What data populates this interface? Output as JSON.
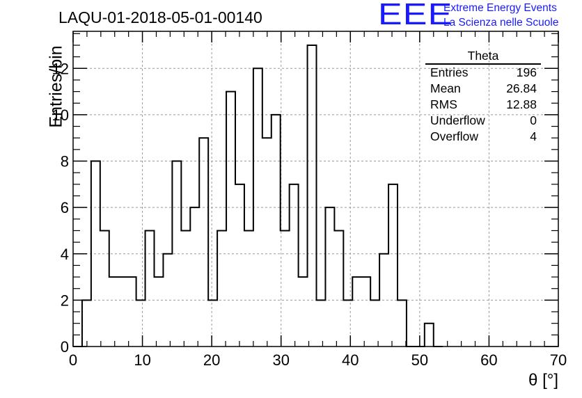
{
  "title": "LAQU-01-2018-05-01-00140",
  "logo": {
    "mark": "EEE",
    "line1": "Extreme Energy Events",
    "line2": "La Scienza nelle Scuole",
    "color": "#1a1aff"
  },
  "stats_box": {
    "title": "Theta",
    "rows": [
      {
        "label": "Entries",
        "value": "196"
      },
      {
        "label": "Mean",
        "value": "26.84"
      },
      {
        "label": "RMS",
        "value": "12.88"
      },
      {
        "label": "Underflow",
        "value": "0"
      },
      {
        "label": "Overflow",
        "value": "4"
      }
    ]
  },
  "chart_data": {
    "type": "bar",
    "subtype": "histogram",
    "title": "LAQU-01-2018-05-01-00140",
    "xlabel": "θ [°]",
    "ylabel": "Entries/bin",
    "xlim": [
      0,
      70
    ],
    "ylim": [
      0,
      13.6
    ],
    "bin_width": 1.3,
    "bin_edges_start": 0,
    "values": [
      0,
      2,
      8,
      5,
      3,
      3,
      3,
      2,
      5,
      3,
      4,
      8,
      5,
      6,
      9,
      2,
      5,
      11,
      7,
      5,
      12,
      9,
      10,
      5,
      7,
      3,
      13,
      2,
      6,
      5,
      2,
      3,
      3,
      2,
      4,
      7,
      2,
      0,
      0,
      1,
      0
    ],
    "x_ticks": [
      "0",
      "10",
      "20",
      "30",
      "40",
      "50",
      "60",
      "70"
    ],
    "y_ticks": [
      "0",
      "2",
      "4",
      "6",
      "8",
      "10",
      "12"
    ],
    "grid": true,
    "legend": "top-right stats box"
  }
}
